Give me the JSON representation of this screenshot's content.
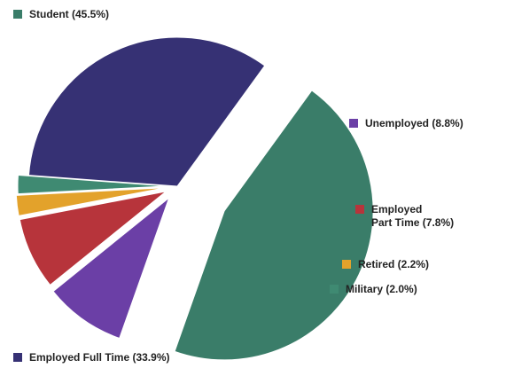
{
  "chart_data": {
    "type": "pie",
    "title": "",
    "slices": [
      {
        "label_lines": [
          "Student (45.5%)"
        ],
        "value": 45.5,
        "color": "#3a7d69"
      },
      {
        "label_lines": [
          "Unemployed (8.8%)"
        ],
        "value": 8.8,
        "color": "#6b3fa6"
      },
      {
        "label_lines": [
          "Employed",
          "Part Time (7.8%)"
        ],
        "value": 7.8,
        "color": "#b7343b"
      },
      {
        "label_lines": [
          "Retired (2.2%)"
        ],
        "value": 2.2,
        "color": "#e3a22b"
      },
      {
        "label_lines": [
          "Military (2.0%)"
        ],
        "value": 2.0,
        "color": "#3f8a72"
      },
      {
        "label_lines": [
          "Employed Full Time (33.9%)"
        ],
        "value": 33.9,
        "color": "#363174"
      }
    ],
    "legend": "labels beside slices"
  }
}
